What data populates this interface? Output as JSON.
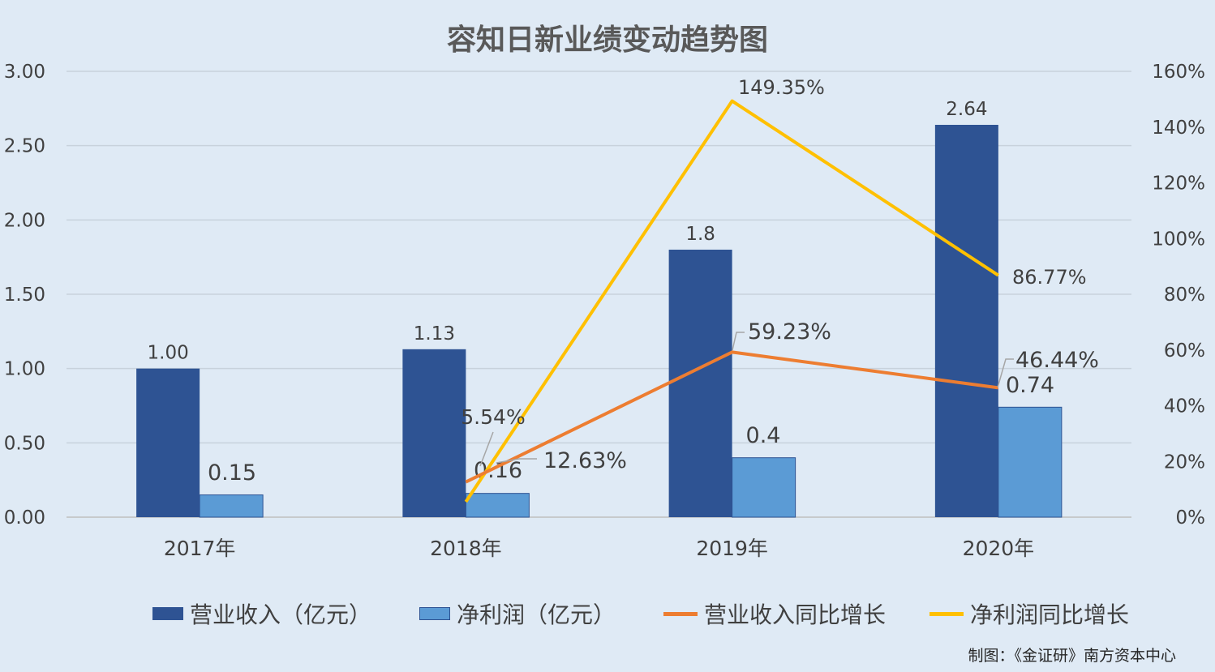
{
  "title": "容知日新业绩变动趋势图",
  "footer": "制图：《金证研》南方资本中心",
  "colors": {
    "background": "#dfeaf5",
    "revenue_bar": "#2e5393",
    "profit_bar": "#5b9bd5",
    "revenue_growth_line": "#ed7d31",
    "profit_growth_line": "#ffc000",
    "grid": "#c8d2dc",
    "text": "#404040"
  },
  "legend": {
    "revenue": "营业收入（亿元）",
    "profit": "净利润（亿元）",
    "revenue_growth": "营业收入同比增长",
    "profit_growth": "净利润同比增长"
  },
  "chart_data": {
    "type": "bar",
    "categories": [
      "2017年",
      "2018年",
      "2019年",
      "2020年"
    ],
    "series": [
      {
        "name": "营业收入（亿元）",
        "type": "bar",
        "axis": "left",
        "values": [
          1.0,
          1.13,
          1.8,
          2.64
        ],
        "labels": [
          "1.00",
          "1.13",
          "1.8",
          "2.64"
        ]
      },
      {
        "name": "净利润（亿元）",
        "type": "bar",
        "axis": "left",
        "values": [
          0.15,
          0.16,
          0.4,
          0.74
        ],
        "labels": [
          "0.15",
          "0.16",
          "0.4",
          "0.74"
        ]
      },
      {
        "name": "营业收入同比增长",
        "type": "line",
        "axis": "right",
        "values": [
          null,
          12.63,
          59.23,
          46.44
        ],
        "labels": [
          "",
          "12.63%",
          "59.23%",
          "46.44%"
        ]
      },
      {
        "name": "净利润同比增长",
        "type": "line",
        "axis": "right",
        "values": [
          null,
          5.54,
          149.35,
          86.77
        ],
        "labels": [
          "",
          "5.54%",
          "149.35%",
          "86.77%"
        ]
      }
    ],
    "ylim_left": [
      0,
      3
    ],
    "yticks_left": [
      "0.00",
      "0.50",
      "1.00",
      "1.50",
      "2.00",
      "2.50",
      "3.00"
    ],
    "ylim_right": [
      0,
      160
    ],
    "yticks_right": [
      "0%",
      "20%",
      "40%",
      "60%",
      "80%",
      "100%",
      "120%",
      "140%",
      "160%"
    ],
    "grid": true,
    "legend_position": "bottom"
  }
}
